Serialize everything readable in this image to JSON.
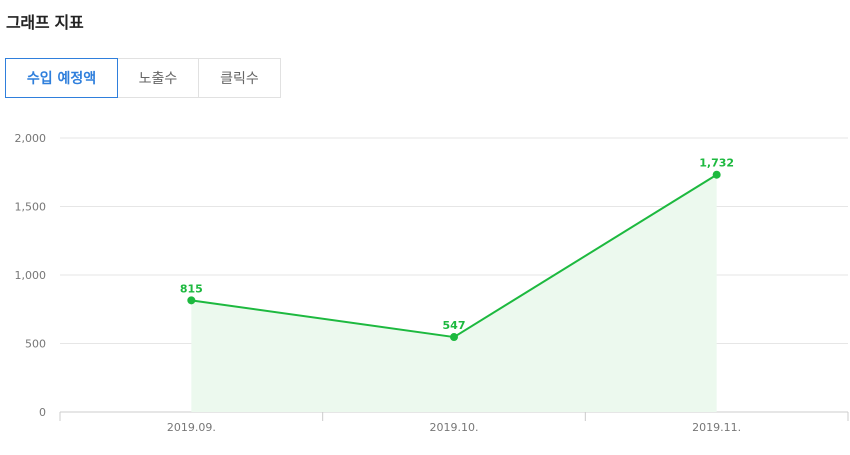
{
  "header": {
    "title": "그래프 지표"
  },
  "tabs": [
    {
      "label": "수입 예정액",
      "active": true
    },
    {
      "label": "노출수",
      "active": false
    },
    {
      "label": "클릭수",
      "active": false
    }
  ],
  "colors": {
    "accent": "#2f7fdc",
    "line": "#1db93f",
    "fill": "#ecf9ee",
    "grid": "#e6e6e6"
  },
  "chart_data": {
    "type": "area",
    "categories": [
      "2019.09.",
      "2019.10.",
      "2019.11."
    ],
    "values": [
      815,
      547,
      1732
    ],
    "value_labels": [
      "815",
      "547",
      "1,732"
    ],
    "yticks": [
      0,
      500,
      1000,
      1500,
      2000
    ],
    "ytick_labels": [
      "0",
      "500",
      "1,000",
      "1,500",
      "2,000"
    ],
    "ylim": [
      0,
      2000
    ],
    "grid": true,
    "legend": "none"
  }
}
